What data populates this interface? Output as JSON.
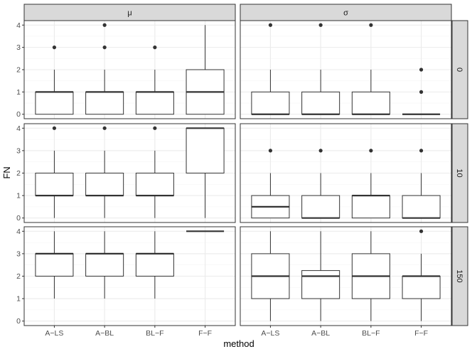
{
  "chart_data": {
    "type": "boxplot",
    "xlabel": "method",
    "ylabel": "FN",
    "ylim": [
      -0.2,
      4.2
    ],
    "y_ticks": [
      0,
      1,
      2,
      3,
      4
    ],
    "categories": [
      "A−LS",
      "A−BL",
      "BL−F",
      "F−F"
    ],
    "facet_cols": [
      "μ",
      "σ"
    ],
    "facet_rows": [
      "0",
      "10",
      "150"
    ],
    "grid": true,
    "colors": {
      "panel_border": "#333333",
      "strip_fill": "#d9d9d9",
      "grid_major": "#ebebeb",
      "grid_minor": "#f5f5f5",
      "box": "#333333",
      "outlier": "#333333"
    },
    "panels": [
      {
        "row": "0",
        "col": "μ",
        "boxes": [
          {
            "category": "A−LS",
            "min": 0,
            "q1": 0,
            "median": 1,
            "q3": 1,
            "max": 2,
            "outliers": [
              3
            ]
          },
          {
            "category": "A−BL",
            "min": 0,
            "q1": 0,
            "median": 1,
            "q3": 1,
            "max": 2,
            "outliers": [
              3,
              4
            ]
          },
          {
            "category": "BL−F",
            "min": 0,
            "q1": 0,
            "median": 1,
            "q3": 1,
            "max": 2,
            "outliers": [
              3
            ]
          },
          {
            "category": "F−F",
            "min": 0,
            "q1": 0,
            "median": 1,
            "q3": 2,
            "max": 4,
            "outliers": []
          }
        ]
      },
      {
        "row": "0",
        "col": "σ",
        "boxes": [
          {
            "category": "A−LS",
            "min": 0,
            "q1": 0,
            "median": 0,
            "q3": 1,
            "max": 2,
            "outliers": [
              4
            ]
          },
          {
            "category": "A−BL",
            "min": 0,
            "q1": 0,
            "median": 0,
            "q3": 1,
            "max": 2,
            "outliers": [
              4
            ]
          },
          {
            "category": "BL−F",
            "min": 0,
            "q1": 0,
            "median": 0,
            "q3": 1,
            "max": 2,
            "outliers": [
              4
            ]
          },
          {
            "category": "F−F",
            "min": 0,
            "q1": 0,
            "median": 0,
            "q3": 0,
            "max": 0,
            "outliers": [
              1,
              2
            ]
          }
        ]
      },
      {
        "row": "10",
        "col": "μ",
        "boxes": [
          {
            "category": "A−LS",
            "min": 0,
            "q1": 1,
            "median": 1,
            "q3": 2,
            "max": 3,
            "outliers": [
              4
            ]
          },
          {
            "category": "A−BL",
            "min": 0,
            "q1": 1,
            "median": 1,
            "q3": 2,
            "max": 3,
            "outliers": [
              4
            ]
          },
          {
            "category": "BL−F",
            "min": 0,
            "q1": 1,
            "median": 1,
            "q3": 2,
            "max": 3,
            "outliers": [
              4
            ]
          },
          {
            "category": "F−F",
            "min": 0,
            "q1": 2,
            "median": 4,
            "q3": 4,
            "max": 4,
            "outliers": []
          }
        ]
      },
      {
        "row": "10",
        "col": "σ",
        "boxes": [
          {
            "category": "A−LS",
            "min": 0,
            "q1": 0,
            "median": 0.5,
            "q3": 1,
            "max": 2,
            "outliers": [
              3
            ]
          },
          {
            "category": "A−BL",
            "min": 0,
            "q1": 0,
            "median": 0,
            "q3": 1,
            "max": 2,
            "outliers": [
              3
            ]
          },
          {
            "category": "BL−F",
            "min": 0,
            "q1": 0,
            "median": 1,
            "q3": 1,
            "max": 2,
            "outliers": [
              3
            ]
          },
          {
            "category": "F−F",
            "min": 0,
            "q1": 0,
            "median": 0,
            "q3": 1,
            "max": 2,
            "outliers": [
              3
            ]
          }
        ]
      },
      {
        "row": "150",
        "col": "μ",
        "boxes": [
          {
            "category": "A−LS",
            "min": 1,
            "q1": 2,
            "median": 3,
            "q3": 3,
            "max": 4,
            "outliers": []
          },
          {
            "category": "A−BL",
            "min": 1,
            "q1": 2,
            "median": 3,
            "q3": 3,
            "max": 4,
            "outliers": []
          },
          {
            "category": "BL−F",
            "min": 1,
            "q1": 2,
            "median": 3,
            "q3": 3,
            "max": 4,
            "outliers": []
          },
          {
            "category": "F−F",
            "min": 4,
            "q1": 4,
            "median": 4,
            "q3": 4,
            "max": 4,
            "outliers": []
          }
        ]
      },
      {
        "row": "150",
        "col": "σ",
        "boxes": [
          {
            "category": "A−LS",
            "min": 0,
            "q1": 1,
            "median": 2,
            "q3": 3,
            "max": 4,
            "outliers": []
          },
          {
            "category": "A−BL",
            "min": 0,
            "q1": 1,
            "median": 2,
            "q3": 2.25,
            "max": 4,
            "outliers": []
          },
          {
            "category": "BL−F",
            "min": 0,
            "q1": 1,
            "median": 2,
            "q3": 3,
            "max": 4,
            "outliers": []
          },
          {
            "category": "F−F",
            "min": 0,
            "q1": 1,
            "median": 2,
            "q3": 2,
            "max": 3,
            "outliers": [
              4
            ]
          }
        ]
      }
    ]
  }
}
